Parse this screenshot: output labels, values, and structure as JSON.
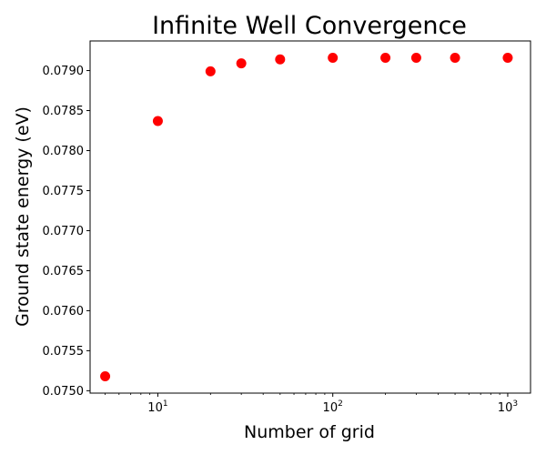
{
  "chart_data": {
    "type": "scatter",
    "title": "Infinite Well Convergence",
    "xlabel": "Number of grid",
    "ylabel": "Ground state energy (eV)",
    "xscale": "log",
    "xlim": [
      4.1,
      1350
    ],
    "ylim": [
      0.07497,
      0.07937
    ],
    "x_ticks": [
      {
        "value": 10,
        "base": "10",
        "exp": "1"
      },
      {
        "value": 100,
        "base": "10",
        "exp": "2"
      },
      {
        "value": 1000,
        "base": "10",
        "exp": "3"
      }
    ],
    "y_ticks": [
      "0.0750",
      "0.0755",
      "0.0760",
      "0.0765",
      "0.0770",
      "0.0775",
      "0.0780",
      "0.0785",
      "0.0790"
    ],
    "marker_color": "#ff0000",
    "grid": false,
    "points": [
      {
        "x": 5,
        "y": 0.07518
      },
      {
        "x": 10,
        "y": 0.07837
      },
      {
        "x": 20,
        "y": 0.07899
      },
      {
        "x": 30,
        "y": 0.07909
      },
      {
        "x": 50,
        "y": 0.07914
      },
      {
        "x": 100,
        "y": 0.07916
      },
      {
        "x": 200,
        "y": 0.07916
      },
      {
        "x": 300,
        "y": 0.07916
      },
      {
        "x": 500,
        "y": 0.07916
      },
      {
        "x": 1000,
        "y": 0.07916
      }
    ]
  }
}
